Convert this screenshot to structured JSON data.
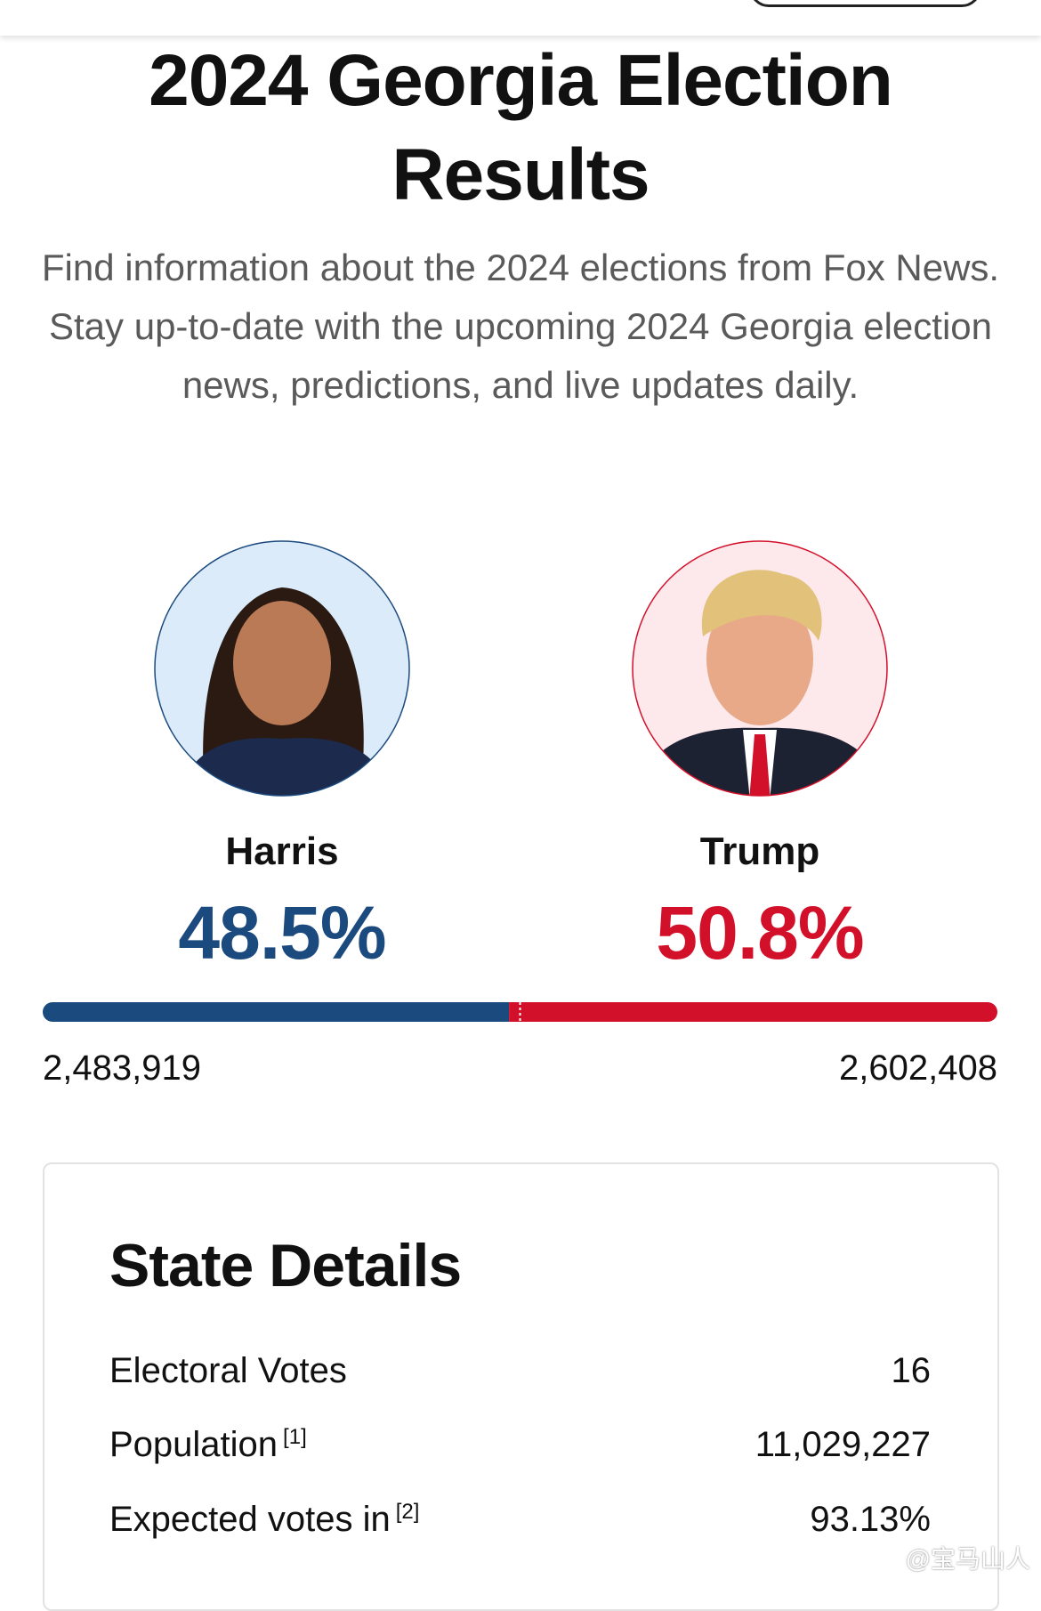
{
  "header": {
    "title": "2024 Georgia Election Results",
    "description": "Find information about the 2024 elections from Fox News. Stay up-to-date with the upcoming 2024 Georgia election news, predictions, and live updates daily."
  },
  "candidates": [
    {
      "name": "Harris",
      "percent": {
        "value": 48.5,
        "label": "48.5%"
      },
      "votes": "2,483,919",
      "color": "#1b4a7e"
    },
    {
      "name": "Trump",
      "percent": {
        "value": 50.8,
        "label": "50.8%"
      },
      "votes": "2,602,408",
      "color": "#d3102a"
    }
  ],
  "state_details": {
    "title": "State Details",
    "rows": [
      {
        "label": "Electoral Votes",
        "value": "16"
      },
      {
        "label": "Population",
        "note": "[1]",
        "value": "11,029,227"
      },
      {
        "label": "Expected votes in",
        "note": "[2]",
        "value": "93.13%"
      }
    ]
  },
  "watermark": "@宝马山人"
}
